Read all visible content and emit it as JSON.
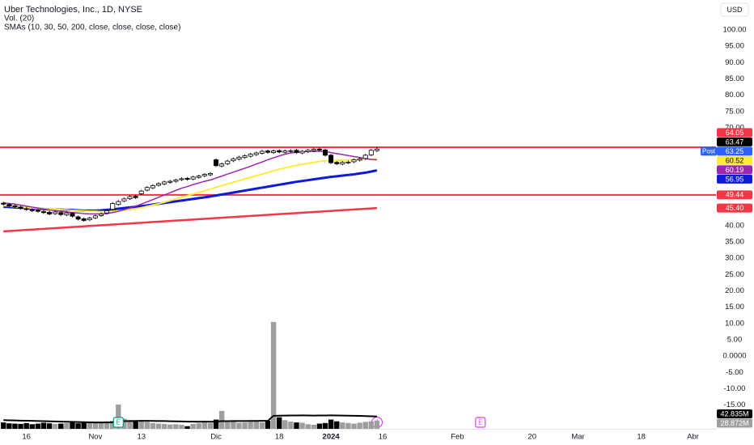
{
  "chart_data": {
    "type": "candlestick",
    "title": "Uber Technologies, Inc., 1D, NYSE",
    "indicators": [
      "Vol. (20)",
      "SMAs (10, 30, 50, 200, close, close, close, close)"
    ],
    "currency": "USD",
    "up_color": "#ffffff",
    "down_color": "#000000",
    "open": [
      46.9,
      46.5,
      46.1,
      45.7,
      45.2,
      44.9,
      44.7,
      44.3,
      44.1,
      43.7,
      44.0,
      43.3,
      43.8,
      42.7,
      42.1,
      41.8,
      42.4,
      43.1,
      43.9,
      45.0,
      46.5,
      47.6,
      48.3,
      49.0,
      49.8,
      50.9,
      51.6,
      52.4,
      52.8,
      53.3,
      53.6,
      54.1,
      54.5,
      54.3,
      54.8,
      55.3,
      55.6,
      60.2,
      58.3,
      59.0,
      59.9,
      60.4,
      60.9,
      61.3,
      61.8,
      62.2,
      62.9,
      62.4,
      63.0,
      62.5,
      62.8,
      63.1,
      62.3,
      62.7,
      63.0,
      63.5,
      63.2,
      61.6,
      59.4,
      58.9,
      59.3,
      59.6,
      60.1,
      60.6,
      61.7,
      63.0
    ],
    "high": [
      47.3,
      46.9,
      46.5,
      46.1,
      45.6,
      45.3,
      45.1,
      44.7,
      44.5,
      44.6,
      44.4,
      44.3,
      44.2,
      43.1,
      42.5,
      42.7,
      43.4,
      44.0,
      45.0,
      47.2,
      47.8,
      48.6,
      49.3,
      49.4,
      51.0,
      52.1,
      52.7,
      53.3,
      53.8,
      54.0,
      54.4,
      54.8,
      54.9,
      55.3,
      55.6,
      56.1,
      56.4,
      60.6,
      59.3,
      60.2,
      60.9,
      61.4,
      61.8,
      62.3,
      62.7,
      63.2,
      63.3,
      63.3,
      63.4,
      63.3,
      63.4,
      63.5,
      63.2,
      63.5,
      63.8,
      63.9,
      63.6,
      62.0,
      59.8,
      59.8,
      59.9,
      60.6,
      60.9,
      62.0,
      63.5,
      64.1
    ],
    "low": [
      46.2,
      45.6,
      45.4,
      44.9,
      44.6,
      44.2,
      44.0,
      43.6,
      43.2,
      43.3,
      43.0,
      42.9,
      42.5,
      41.6,
      41.2,
      41.4,
      42.0,
      42.7,
      43.5,
      44.6,
      46.1,
      47.2,
      47.9,
      48.2,
      49.4,
      50.5,
      51.2,
      52.0,
      52.4,
      52.9,
      53.2,
      53.7,
      53.8,
      53.9,
      54.4,
      54.9,
      55.2,
      58.0,
      57.9,
      58.6,
      59.5,
      60.0,
      60.5,
      60.9,
      61.4,
      61.8,
      62.1,
      62.0,
      62.2,
      62.1,
      62.4,
      62.0,
      61.9,
      62.3,
      62.6,
      62.8,
      61.2,
      58.9,
      58.6,
      58.5,
      58.9,
      59.2,
      59.7,
      60.2,
      61.3,
      62.6
    ],
    "close": [
      46.6,
      46.0,
      45.8,
      45.3,
      45.0,
      44.6,
      44.4,
      44.0,
      43.6,
      44.2,
      43.4,
      43.9,
      42.9,
      42.0,
      41.6,
      42.3,
      43.0,
      43.6,
      44.6,
      46.8,
      47.4,
      48.2,
      48.9,
      48.6,
      50.6,
      51.7,
      52.3,
      52.9,
      53.4,
      53.6,
      54.0,
      54.4,
      54.2,
      54.9,
      55.2,
      55.7,
      56.0,
      58.4,
      58.9,
      59.8,
      60.5,
      61.0,
      61.4,
      61.9,
      62.3,
      62.8,
      62.5,
      62.9,
      62.6,
      62.9,
      63.0,
      62.4,
      62.8,
      63.1,
      63.4,
      63.2,
      61.6,
      59.3,
      59.0,
      59.4,
      59.5,
      60.2,
      60.5,
      61.6,
      63.1,
      63.47
    ],
    "series": [
      {
        "color": "#f23645",
        "width": 2.5,
        "values": [
          38.25,
          38.36,
          38.47,
          38.58,
          38.69,
          38.8,
          38.91,
          39.02,
          39.13,
          39.24,
          39.35,
          39.46,
          39.57,
          39.68,
          39.79,
          39.9,
          40.01,
          40.12,
          40.23,
          40.34,
          40.45,
          40.56,
          40.67,
          40.78,
          40.89,
          41.0,
          41.11,
          41.22,
          41.33,
          41.44,
          41.55,
          41.66,
          41.77,
          41.88,
          41.99,
          42.1,
          42.21,
          42.32,
          42.43,
          42.54,
          42.65,
          42.76,
          42.87,
          42.98,
          43.09,
          43.2,
          43.31,
          43.42,
          43.53,
          43.64,
          43.75,
          43.86,
          43.97,
          44.08,
          44.19,
          44.3,
          44.41,
          44.52,
          44.63,
          44.74,
          44.85,
          44.96,
          45.07,
          45.18,
          45.29,
          45.4
        ]
      },
      {
        "color": "#0d1bd8",
        "width": 3,
        "values": [
          45.8,
          45.7,
          45.6,
          45.5,
          45.4,
          45.3,
          45.2,
          45.1,
          45.0,
          44.9,
          44.9,
          44.8,
          44.8,
          44.7,
          44.6,
          44.6,
          44.6,
          44.7,
          44.85,
          45.0,
          45.2,
          45.4,
          45.6,
          45.8,
          46.0,
          46.2,
          46.45,
          46.7,
          46.95,
          47.2,
          47.45,
          47.7,
          47.95,
          48.2,
          48.45,
          48.7,
          48.95,
          49.25,
          49.55,
          49.85,
          50.15,
          50.45,
          50.75,
          51.05,
          51.35,
          51.65,
          51.95,
          52.25,
          52.55,
          52.85,
          53.15,
          53.45,
          53.7,
          53.95,
          54.2,
          54.45,
          54.7,
          54.95,
          55.15,
          55.35,
          55.55,
          55.75,
          56.0,
          56.25,
          56.6,
          56.95
        ]
      },
      {
        "color": "#ffeb3b",
        "width": 2,
        "values": [
          46.2,
          46.0,
          45.8,
          45.7,
          45.5,
          45.4,
          45.3,
          45.2,
          45.1,
          45.0,
          44.9,
          44.8,
          44.7,
          44.6,
          44.5,
          44.4,
          44.4,
          44.3,
          44.3,
          44.4,
          44.5,
          44.7,
          44.9,
          45.2,
          45.5,
          45.9,
          46.3,
          46.7,
          47.2,
          47.7,
          48.2,
          48.7,
          49.2,
          49.7,
          50.2,
          50.7,
          51.2,
          51.8,
          52.3,
          52.8,
          53.3,
          53.8,
          54.3,
          54.8,
          55.3,
          55.8,
          56.3,
          56.8,
          57.3,
          57.7,
          58.1,
          58.5,
          58.8,
          59.1,
          59.4,
          59.7,
          59.9,
          60.0,
          60.0,
          60.1,
          60.1,
          60.2,
          60.2,
          60.3,
          60.4,
          60.52
        ]
      },
      {
        "color": "#9c27b0",
        "width": 1.5,
        "values": [
          47.0,
          46.8,
          46.6,
          46.3,
          46.0,
          45.7,
          45.4,
          45.1,
          44.8,
          44.6,
          44.4,
          44.2,
          44.0,
          43.9,
          43.7,
          43.6,
          43.6,
          43.6,
          43.7,
          44.0,
          44.4,
          44.9,
          45.4,
          46.0,
          46.6,
          47.3,
          48.0,
          48.7,
          49.4,
          50.1,
          50.8,
          51.5,
          52.0,
          52.6,
          53.1,
          53.6,
          54.0,
          54.6,
          55.2,
          55.8,
          56.4,
          57.0,
          57.6,
          58.2,
          58.9,
          59.5,
          60.2,
          60.8,
          61.4,
          61.9,
          62.3,
          62.5,
          62.7,
          62.8,
          62.8,
          62.8,
          62.7,
          62.4,
          62.1,
          61.8,
          61.5,
          61.2,
          60.9,
          60.6,
          60.3,
          60.19
        ]
      }
    ],
    "volume": {
      "up_color": "#9e9e9e",
      "down_color": "#000000",
      "ma_color": "#000000",
      "vlim": [
        0,
        420
      ],
      "values": [
        22,
        19,
        18,
        17,
        20,
        16,
        18,
        21,
        19,
        17,
        18,
        20,
        22,
        19,
        24,
        21,
        20,
        23,
        26,
        28,
        84,
        35,
        30,
        26,
        28,
        24,
        20,
        18,
        17,
        15,
        16,
        14,
        9,
        17,
        19,
        22,
        20,
        32,
        62,
        24,
        26,
        21,
        22,
        24,
        25,
        22,
        28,
        370,
        40,
        30,
        25,
        22,
        21,
        16,
        14,
        18,
        20,
        32,
        26,
        22,
        20,
        18,
        21,
        24,
        26,
        28.872
      ],
      "ma": [
        30,
        29.5,
        29,
        28.5,
        28,
        27.5,
        27,
        26.5,
        26,
        25.5,
        25,
        24.5,
        24,
        23.5,
        23,
        22.5,
        22,
        22,
        22.2,
        22.5,
        25.6,
        26.5,
        27,
        27.3,
        27.6,
        27.5,
        27.3,
        27,
        26.8,
        26.4,
        26,
        25.6,
        25,
        24.8,
        24.6,
        24.8,
        24.6,
        25,
        26.5,
        26.6,
        26.8,
        26.9,
        27,
        27.2,
        27.4,
        27.5,
        27.8,
        45,
        45.6,
        45.9,
        46.2,
        46.3,
        46.4,
        46.2,
        46,
        46.1,
        46.2,
        46.4,
        46.3,
        46,
        45.6,
        45.2,
        44.8,
        44.1,
        43.5,
        42.835
      ],
      "labels": [
        {
          "value": 42.835,
          "label": "42.835M",
          "bg": "#000000",
          "fg": "#ffffff"
        },
        {
          "value": 28.872,
          "label": "28.872M",
          "bg": "#9e9e9e",
          "fg": "#ffffff"
        }
      ]
    },
    "price_labels": [
      {
        "value": 64.05,
        "label": "64.05",
        "bg": "#f23645",
        "fg": "#ffffff",
        "line": true
      },
      {
        "value": 63.47,
        "label": "63.47",
        "bg": "#000000",
        "fg": "#ffffff"
      },
      {
        "value": 63.25,
        "label": "63.25",
        "bg": "#2962ff",
        "fg": "#ffffff",
        "tag": "Post"
      },
      {
        "value": 60.52,
        "label": "60.52",
        "bg": "#ffeb3b",
        "fg": "#000000"
      },
      {
        "value": 60.19,
        "label": "60.19",
        "bg": "#9c27b0",
        "fg": "#ffffff"
      },
      {
        "value": 56.95,
        "label": "56.95",
        "bg": "#0d1bd8",
        "fg": "#ffffff"
      },
      {
        "value": 49.44,
        "label": "49.44",
        "bg": "#f23645",
        "fg": "#ffffff",
        "line": true
      },
      {
        "value": 45.4,
        "label": "45.40",
        "bg": "#f23645",
        "fg": "#ffffff"
      }
    ],
    "events": [
      {
        "label": "E",
        "x": 20,
        "color": "#089981"
      },
      {
        "label": "E",
        "x": 83,
        "color": "#e040fb"
      }
    ],
    "xlim": [
      -0.6,
      124
    ],
    "xticks": [
      {
        "value": 4,
        "label": "16"
      },
      {
        "value": 16,
        "label": "Nov"
      },
      {
        "value": 24,
        "label": "13"
      },
      {
        "value": 37,
        "label": "Dic"
      },
      {
        "value": 48,
        "label": "18"
      },
      {
        "value": 57,
        "label": "2024"
      },
      {
        "value": 66,
        "label": "16"
      },
      {
        "value": 79,
        "label": "Feb"
      },
      {
        "value": 92,
        "label": "20"
      },
      {
        "value": 100,
        "label": "Mar"
      },
      {
        "value": 111,
        "label": "18"
      },
      {
        "value": 120,
        "label": "Abr"
      }
    ],
    "ylim": [
      -22.3,
      109.2
    ],
    "yticks": [
      {
        "value": 100,
        "label": "100.00"
      },
      {
        "value": 95,
        "label": "95.00"
      },
      {
        "value": 90,
        "label": "90.00"
      },
      {
        "value": 85,
        "label": "85.00"
      },
      {
        "value": 80,
        "label": "80.00"
      },
      {
        "value": 75,
        "label": "75.00"
      },
      {
        "value": 70,
        "label": "70.00"
      },
      {
        "value": 40,
        "label": "40.00"
      },
      {
        "value": 35,
        "label": "35.00"
      },
      {
        "value": 30,
        "label": "30.00"
      },
      {
        "value": 25,
        "label": "25.00"
      },
      {
        "value": 20,
        "label": "20.00"
      },
      {
        "value": 15,
        "label": "15.00"
      },
      {
        "value": 10,
        "label": "10.00"
      },
      {
        "value": 5,
        "label": "5.00"
      },
      {
        "value": 0,
        "label": "0.0000"
      },
      {
        "value": -5,
        "label": "-5.00"
      },
      {
        "value": -10,
        "label": "-10.00"
      },
      {
        "value": -15,
        "label": "-15.00"
      }
    ]
  }
}
